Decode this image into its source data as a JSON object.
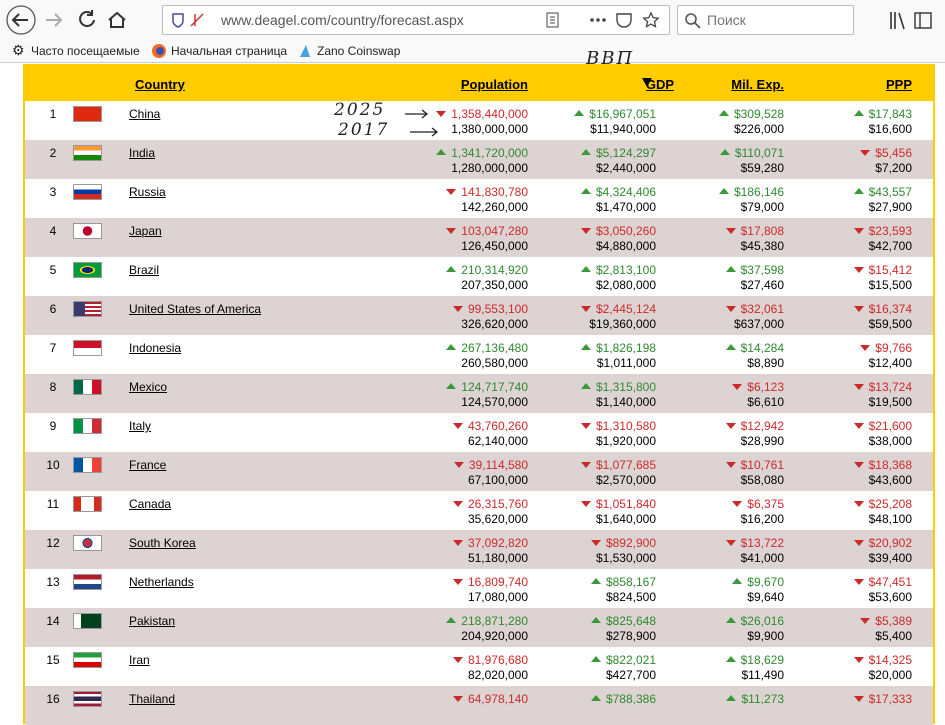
{
  "browser": {
    "url": "www.deagel.com/country/forecast.aspx",
    "search": "Поиск",
    "bookmarks": [
      "Часто посещаемые",
      "Начальная страница",
      "Zano Coinswap"
    ]
  },
  "annotations": {
    "year_new": "2025",
    "year_old": "2017",
    "column": "ВВП"
  },
  "table": {
    "headers": [
      "Country",
      "Population",
      "GDP",
      "Mil. Exp.",
      "PPP"
    ],
    "sorted_column": 2,
    "rows": [
      {
        "rank": 1,
        "country": "China",
        "cells": [
          {
            "v": "1,358,440,000",
            "was": "1,380,000,000",
            "up": false
          },
          {
            "v": "$16,967,051",
            "was": "$11,940,000",
            "up": true
          },
          {
            "v": "$309,528",
            "was": "$226,000",
            "up": true
          },
          {
            "v": "$17,843",
            "was": "$16,600",
            "up": true
          }
        ]
      },
      {
        "rank": 2,
        "country": "India",
        "cells": [
          {
            "v": "1,341,720,000",
            "was": "1,280,000,000",
            "up": true
          },
          {
            "v": "$5,124,297",
            "was": "$2,440,000",
            "up": true
          },
          {
            "v": "$110,071",
            "was": "$59,280",
            "up": true
          },
          {
            "v": "$5,456",
            "was": "$7,200",
            "up": false
          }
        ]
      },
      {
        "rank": 3,
        "country": "Russia",
        "cells": [
          {
            "v": "141,830,780",
            "was": "142,260,000",
            "up": false
          },
          {
            "v": "$4,324,406",
            "was": "$1,470,000",
            "up": true
          },
          {
            "v": "$186,146",
            "was": "$79,000",
            "up": true
          },
          {
            "v": "$43,557",
            "was": "$27,900",
            "up": true
          }
        ]
      },
      {
        "rank": 4,
        "country": "Japan",
        "cells": [
          {
            "v": "103,047,280",
            "was": "126,450,000",
            "up": false
          },
          {
            "v": "$3,050,260",
            "was": "$4,880,000",
            "up": false
          },
          {
            "v": "$17,808",
            "was": "$45,380",
            "up": false
          },
          {
            "v": "$23,593",
            "was": "$42,700",
            "up": false
          }
        ]
      },
      {
        "rank": 5,
        "country": "Brazil",
        "cells": [
          {
            "v": "210,314,920",
            "was": "207,350,000",
            "up": true
          },
          {
            "v": "$2,813,100",
            "was": "$2,080,000",
            "up": true
          },
          {
            "v": "$37,598",
            "was": "$27,460",
            "up": true
          },
          {
            "v": "$15,412",
            "was": "$15,500",
            "up": false
          }
        ]
      },
      {
        "rank": 6,
        "country": "United States of America",
        "cells": [
          {
            "v": "99,553,100",
            "was": "326,620,000",
            "up": false
          },
          {
            "v": "$2,445,124",
            "was": "$19,360,000",
            "up": false
          },
          {
            "v": "$32,061",
            "was": "$637,000",
            "up": false
          },
          {
            "v": "$16,374",
            "was": "$59,500",
            "up": false
          }
        ]
      },
      {
        "rank": 7,
        "country": "Indonesia",
        "cells": [
          {
            "v": "267,136,480",
            "was": "260,580,000",
            "up": true
          },
          {
            "v": "$1,826,198",
            "was": "$1,011,000",
            "up": true
          },
          {
            "v": "$14,284",
            "was": "$8,890",
            "up": true
          },
          {
            "v": "$9,766",
            "was": "$12,400",
            "up": false
          }
        ]
      },
      {
        "rank": 8,
        "country": "Mexico",
        "cells": [
          {
            "v": "124,717,740",
            "was": "124,570,000",
            "up": true
          },
          {
            "v": "$1,315,800",
            "was": "$1,140,000",
            "up": true
          },
          {
            "v": "$6,123",
            "was": "$6,610",
            "up": false
          },
          {
            "v": "$13,724",
            "was": "$19,500",
            "up": false
          }
        ]
      },
      {
        "rank": 9,
        "country": "Italy",
        "cells": [
          {
            "v": "43,760,260",
            "was": "62,140,000",
            "up": false
          },
          {
            "v": "$1,310,580",
            "was": "$1,920,000",
            "up": false
          },
          {
            "v": "$12,942",
            "was": "$28,990",
            "up": false
          },
          {
            "v": "$21,600",
            "was": "$38,000",
            "up": false
          }
        ]
      },
      {
        "rank": 10,
        "country": "France",
        "cells": [
          {
            "v": "39,114,580",
            "was": "67,100,000",
            "up": false
          },
          {
            "v": "$1,077,685",
            "was": "$2,570,000",
            "up": false
          },
          {
            "v": "$10,761",
            "was": "$58,080",
            "up": false
          },
          {
            "v": "$18,368",
            "was": "$43,600",
            "up": false
          }
        ]
      },
      {
        "rank": 11,
        "country": "Canada",
        "cells": [
          {
            "v": "26,315,760",
            "was": "35,620,000",
            "up": false
          },
          {
            "v": "$1,051,840",
            "was": "$1,640,000",
            "up": false
          },
          {
            "v": "$6,375",
            "was": "$16,200",
            "up": false
          },
          {
            "v": "$25,208",
            "was": "$48,100",
            "up": false
          }
        ]
      },
      {
        "rank": 12,
        "country": "South Korea",
        "cells": [
          {
            "v": "37,092,820",
            "was": "51,180,000",
            "up": false
          },
          {
            "v": "$892,900",
            "was": "$1,530,000",
            "up": false
          },
          {
            "v": "$13,722",
            "was": "$41,000",
            "up": false
          },
          {
            "v": "$20,902",
            "was": "$39,400",
            "up": false
          }
        ]
      },
      {
        "rank": 13,
        "country": "Netherlands",
        "cells": [
          {
            "v": "16,809,740",
            "was": "17,080,000",
            "up": false
          },
          {
            "v": "$858,167",
            "was": "$824,500",
            "up": true
          },
          {
            "v": "$9,670",
            "was": "$9,640",
            "up": true
          },
          {
            "v": "$47,451",
            "was": "$53,600",
            "up": false
          }
        ]
      },
      {
        "rank": 14,
        "country": "Pakistan",
        "cells": [
          {
            "v": "218,871,280",
            "was": "204,920,000",
            "up": true
          },
          {
            "v": "$825,648",
            "was": "$278,900",
            "up": true
          },
          {
            "v": "$26,016",
            "was": "$9,900",
            "up": true
          },
          {
            "v": "$5,389",
            "was": "$5,400",
            "up": false
          }
        ]
      },
      {
        "rank": 15,
        "country": "Iran",
        "cells": [
          {
            "v": "81,976,680",
            "was": "82,020,000",
            "up": false
          },
          {
            "v": "$822,021",
            "was": "$427,700",
            "up": true
          },
          {
            "v": "$18,629",
            "was": "$11,490",
            "up": true
          },
          {
            "v": "$14,325",
            "was": "$20,000",
            "up": false
          }
        ]
      },
      {
        "rank": 16,
        "country": "Thailand",
        "cells": [
          {
            "v": "64,978,140",
            "up": false
          },
          {
            "v": "$788,386",
            "up": true
          },
          {
            "v": "$11,273",
            "up": true
          },
          {
            "v": "$17,333",
            "up": false
          }
        ]
      }
    ]
  }
}
